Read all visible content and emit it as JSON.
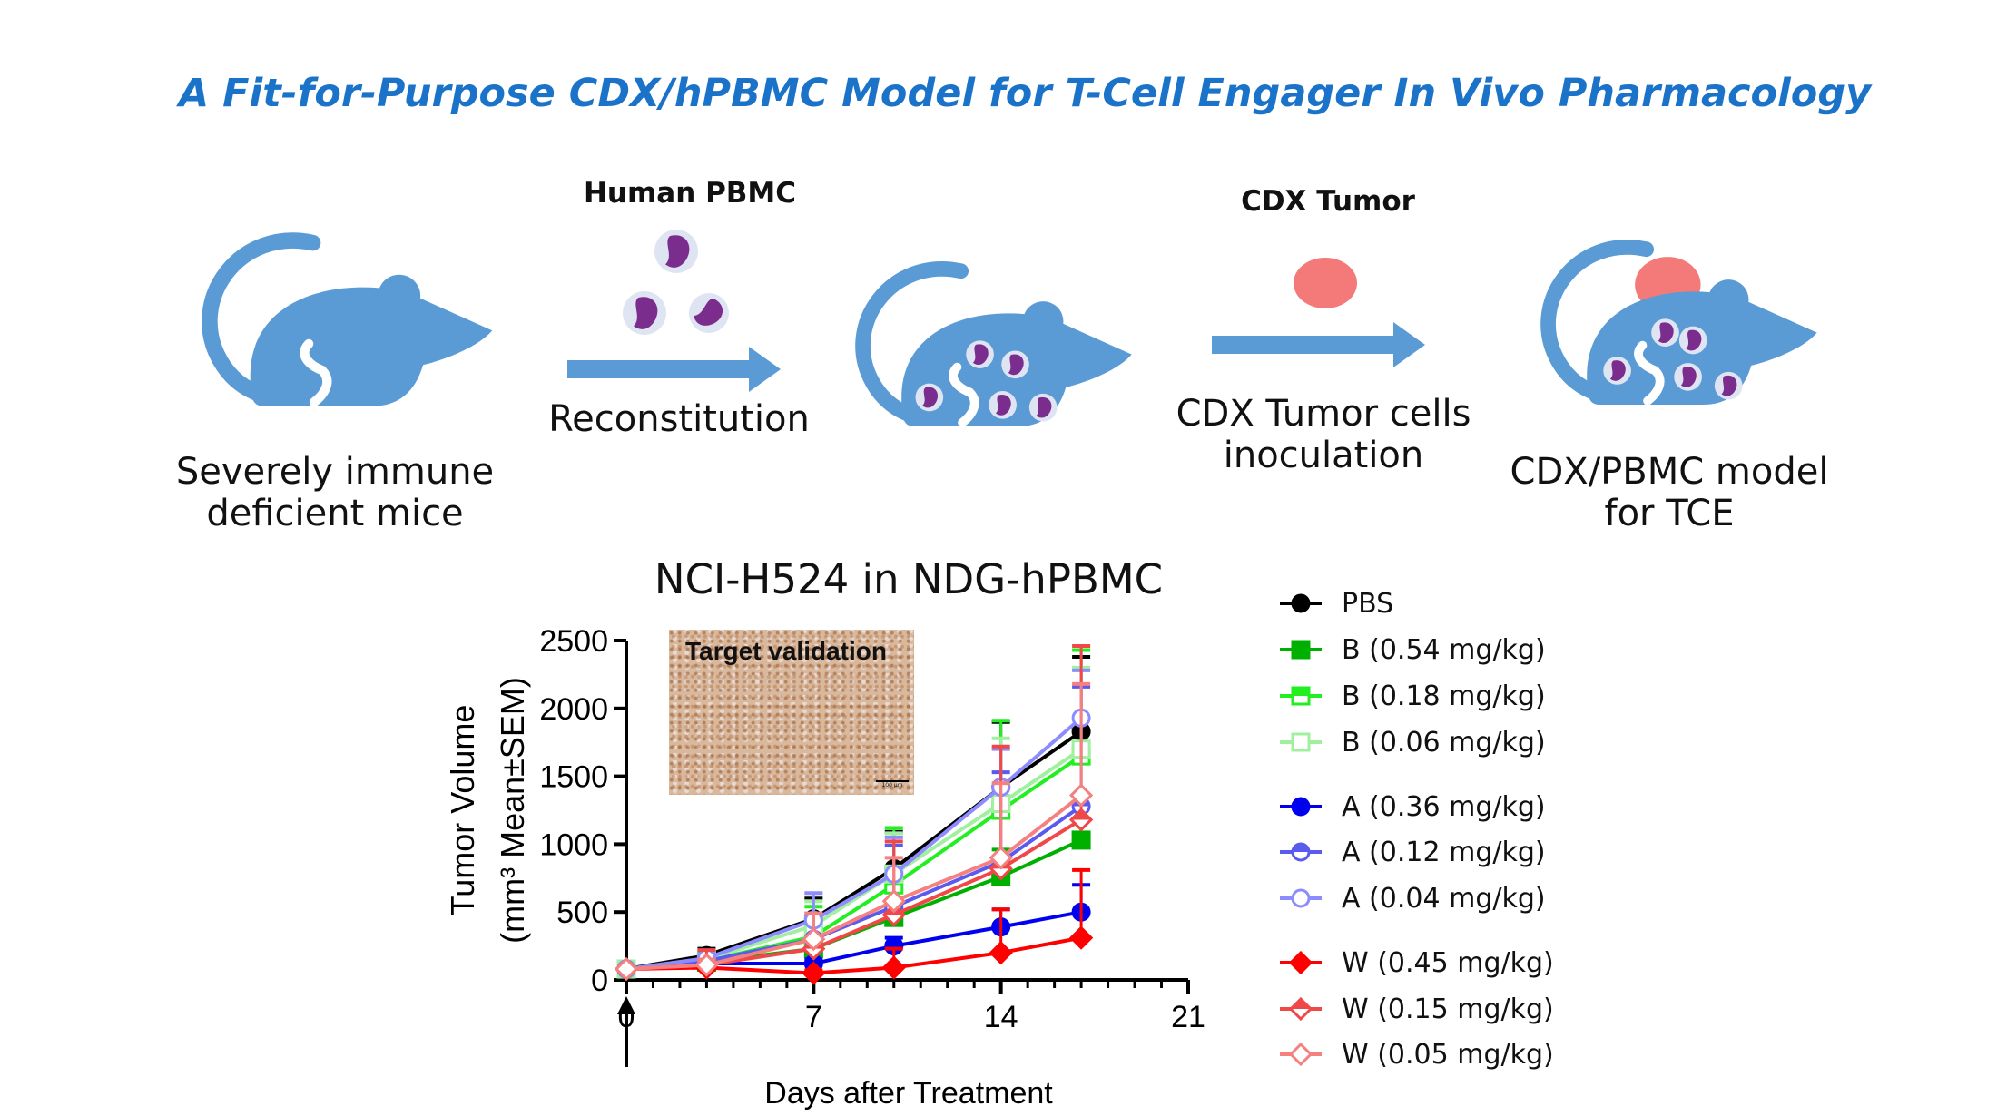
{
  "title": "A Fit-for-Purpose CDX/hPBMC Model for T-Cell Engager In Vivo Pharmacology",
  "workflow": {
    "step1_caption": [
      "Severely immune",
      "deficient mice"
    ],
    "step2_label": "Human PBMC",
    "step2_caption": "Reconstitution",
    "step3_label": "CDX Tumor",
    "step3_caption": [
      "CDX Tumor cells",
      "inoculation"
    ],
    "step4_caption": [
      "CDX/PBMC model",
      "for TCE"
    ],
    "colors": {
      "mouse": "#5b9bd5",
      "cell_nucleus": "#7b2d8e",
      "tumor": "#f47a7a",
      "arrow": "#5b9bd5"
    }
  },
  "inset": {
    "label": "Target validation",
    "scale": "100 µm"
  },
  "chart_data": {
    "type": "line",
    "title": "NCI-H524 in NDG-hPBMC",
    "xlabel": "Days after Treatment",
    "ylabel": [
      "Tumor Volume",
      "(mm³ Mean±SEM)"
    ],
    "xlim": [
      0,
      21
    ],
    "ylim": [
      0,
      2500
    ],
    "xticks": [
      0,
      7,
      14,
      21
    ],
    "yticks": [
      0,
      500,
      1000,
      1500,
      2000,
      2500
    ],
    "treatment_marker_day": 0,
    "grid": false,
    "legend_placement": "right",
    "x": [
      0,
      3,
      7,
      10,
      14,
      17
    ],
    "series": [
      {
        "name": "PBS",
        "color": "#000000",
        "marker": "circle-filled",
        "values": [
          80,
          180,
          450,
          820,
          1420,
          1830
        ],
        "sem": [
          10,
          50,
          150,
          270,
          480,
          550
        ]
      },
      {
        "name": "B (0.54 mg/kg)",
        "color": "#00b000",
        "marker": "square-filled",
        "values": [
          80,
          130,
          230,
          460,
          760,
          1030
        ],
        "sem": [
          10,
          30,
          60,
          120,
          200,
          250
        ]
      },
      {
        "name": "B (0.18 mg/kg)",
        "color": "#22ee22",
        "marker": "square-half",
        "values": [
          80,
          140,
          320,
          700,
          1250,
          1650
        ],
        "sem": [
          10,
          40,
          220,
          420,
          660,
          780
        ]
      },
      {
        "name": "B (0.06 mg/kg)",
        "color": "#a0f0a0",
        "marker": "square-open",
        "values": [
          80,
          150,
          400,
          780,
          1300,
          1700
        ],
        "sem": [
          10,
          40,
          180,
          300,
          480,
          600
        ]
      },
      {
        "name": "A (0.36 mg/kg)",
        "color": "#0000ee",
        "marker": "circle-filled",
        "values": [
          80,
          120,
          120,
          250,
          390,
          500
        ],
        "sem": [
          10,
          20,
          30,
          60,
          130,
          200
        ]
      },
      {
        "name": "A (0.12 mg/kg)",
        "color": "#5a5aee",
        "marker": "circle-half",
        "values": [
          80,
          140,
          300,
          540,
          870,
          1280
        ],
        "sem": [
          10,
          30,
          150,
          450,
          660,
          880
        ]
      },
      {
        "name": "A (0.04 mg/kg)",
        "color": "#8c8cff",
        "marker": "circle-open",
        "values": [
          80,
          160,
          440,
          780,
          1420,
          1930
        ],
        "sem": [
          10,
          40,
          200,
          270,
          280,
          350
        ]
      },
      {
        "name": "W (0.45 mg/kg)",
        "color": "#ff0000",
        "marker": "diamond-filled",
        "values": [
          80,
          90,
          50,
          90,
          200,
          310
        ],
        "sem": [
          10,
          20,
          20,
          140,
          320,
          500
        ]
      },
      {
        "name": "W (0.15 mg/kg)",
        "color": "#f04848",
        "marker": "diamond-half",
        "values": [
          80,
          110,
          230,
          480,
          820,
          1180
        ],
        "sem": [
          10,
          110,
          260,
          540,
          900,
          1280
        ]
      },
      {
        "name": "W (0.05 mg/kg)",
        "color": "#f58080",
        "marker": "diamond-open",
        "values": [
          80,
          110,
          300,
          580,
          900,
          1360
        ],
        "sem": [
          10,
          40,
          190,
          320,
          550,
          820
        ]
      }
    ]
  }
}
